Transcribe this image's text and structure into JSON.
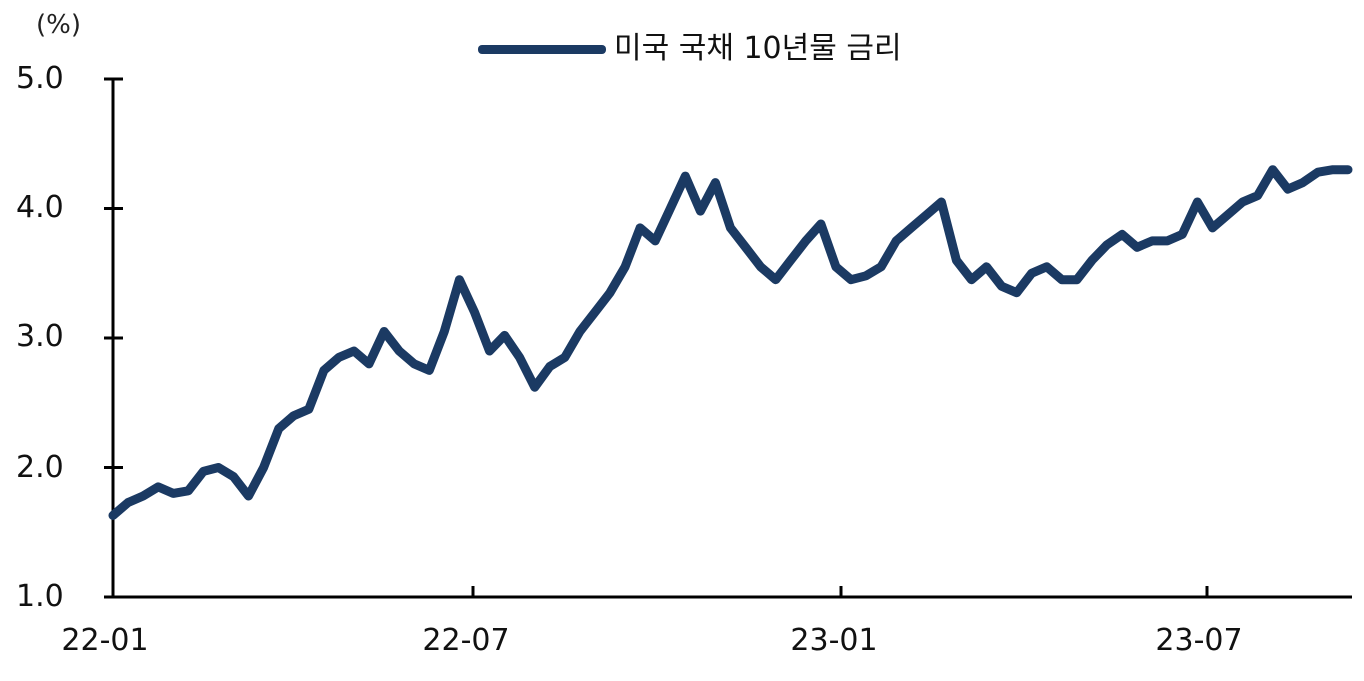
{
  "chart": {
    "unit": "(%)",
    "legend_label": "미국 국채 10년물 금리",
    "line_color": "#1b3a63",
    "y_ticks": [
      "5.0",
      "4.0",
      "3.0",
      "2.0",
      "1.0"
    ],
    "x_ticks": [
      "22-01",
      "22-07",
      "23-01",
      "23-07"
    ]
  },
  "chart_data": {
    "type": "line",
    "title": "",
    "xlabel": "",
    "ylabel": "(%)",
    "ylim": [
      1.0,
      5.0
    ],
    "xlim": [
      "22-01",
      "23-10"
    ],
    "grid": false,
    "legend_position": "top-center",
    "x_tick_labels": [
      "22-01",
      "22-07",
      "23-01",
      "23-07"
    ],
    "y_tick_labels": [
      "1.0",
      "2.0",
      "3.0",
      "4.0",
      "5.0"
    ],
    "series": [
      {
        "name": "미국 국채 10년물 금리",
        "color": "#1b3a63",
        "x": [
          "22-01",
          "22-01",
          "22-01",
          "22-01",
          "22-02",
          "22-02",
          "22-02",
          "22-02",
          "22-03",
          "22-03",
          "22-03",
          "22-03",
          "22-04",
          "22-04",
          "22-04",
          "22-04",
          "22-05",
          "22-05",
          "22-05",
          "22-05",
          "22-06",
          "22-06",
          "22-06",
          "22-06",
          "22-07",
          "22-07",
          "22-07",
          "22-07",
          "22-08",
          "22-08",
          "22-08",
          "22-08",
          "22-09",
          "22-09",
          "22-09",
          "22-09",
          "22-10",
          "22-10",
          "22-10",
          "22-10",
          "22-11",
          "22-11",
          "22-11",
          "22-11",
          "22-12",
          "22-12",
          "22-12",
          "22-12",
          "23-01",
          "23-01",
          "23-01",
          "23-01",
          "23-02",
          "23-02",
          "23-02",
          "23-02",
          "23-03",
          "23-03",
          "23-03",
          "23-03",
          "23-04",
          "23-04",
          "23-04",
          "23-04",
          "23-05",
          "23-05",
          "23-05",
          "23-05",
          "23-06",
          "23-06",
          "23-06",
          "23-06",
          "23-07",
          "23-07",
          "23-07",
          "23-07",
          "23-08",
          "23-08",
          "23-08",
          "23-08",
          "23-09",
          "23-09",
          "23-09"
        ],
        "values": [
          1.63,
          1.73,
          1.78,
          1.85,
          1.8,
          1.82,
          1.97,
          2.0,
          1.93,
          1.78,
          2.0,
          2.3,
          2.4,
          2.45,
          2.75,
          2.85,
          2.9,
          2.8,
          3.05,
          2.9,
          2.8,
          2.75,
          3.05,
          3.45,
          3.2,
          2.9,
          3.02,
          2.85,
          2.62,
          2.78,
          2.85,
          3.05,
          3.2,
          3.35,
          3.55,
          3.85,
          3.75,
          4.0,
          4.25,
          3.98,
          4.2,
          3.85,
          3.7,
          3.55,
          3.45,
          3.6,
          3.75,
          3.88,
          3.55,
          3.45,
          3.48,
          3.55,
          3.75,
          3.85,
          3.95,
          4.05,
          3.6,
          3.45,
          3.55,
          3.4,
          3.35,
          3.5,
          3.55,
          3.45,
          3.45,
          3.6,
          3.72,
          3.8,
          3.7,
          3.75,
          3.75,
          3.8,
          4.05,
          3.85,
          3.95,
          4.05,
          4.1,
          4.3,
          4.15,
          4.2,
          4.28,
          4.3,
          4.3
        ]
      }
    ]
  }
}
